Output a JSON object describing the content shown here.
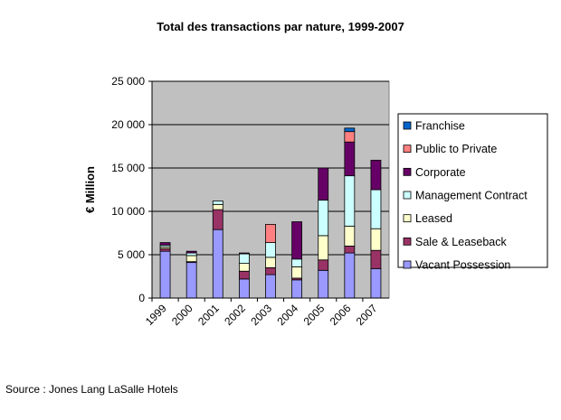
{
  "chart_data": {
    "type": "bar",
    "stacked": true,
    "title": "Total des transactions par nature, 1999-2007",
    "ylabel": "€ Million",
    "xlabel": "",
    "ylim": [
      0,
      25000
    ],
    "yticks": [
      0,
      5000,
      10000,
      15000,
      20000,
      25000
    ],
    "ytick_labels": [
      "0",
      "5 000",
      "10 000",
      "15 000",
      "20 000",
      "25 000"
    ],
    "categories": [
      "1999",
      "2000",
      "2001",
      "2002",
      "2003",
      "2004",
      "2005",
      "2006",
      "2007"
    ],
    "legend_position": "right",
    "grid": true,
    "plot_background": "#c0c0c0",
    "series": [
      {
        "name": "Vacant Possession",
        "color": "#9999ff",
        "values": [
          5400,
          4100,
          7900,
          2200,
          2700,
          2100,
          3200,
          5200,
          3400
        ]
      },
      {
        "name": "Sale & Leaseback",
        "color": "#993366",
        "values": [
          300,
          100,
          2300,
          900,
          800,
          200,
          1200,
          800,
          2100
        ]
      },
      {
        "name": "Leased",
        "color": "#ffffcc",
        "values": [
          200,
          700,
          600,
          900,
          1200,
          1300,
          2800,
          2300,
          2500
        ]
      },
      {
        "name": "Management Contract",
        "color": "#ccffff",
        "values": [
          200,
          300,
          400,
          1100,
          1700,
          900,
          4100,
          5800,
          4500
        ]
      },
      {
        "name": "Corporate",
        "color": "#660066",
        "values": [
          300,
          200,
          0,
          100,
          0,
          4300,
          3700,
          3900,
          3400
        ]
      },
      {
        "name": "Public to Private",
        "color": "#ff8080",
        "values": [
          0,
          0,
          0,
          0,
          2100,
          0,
          0,
          1200,
          0
        ]
      },
      {
        "name": "Franchise",
        "color": "#0066cc",
        "values": [
          0,
          0,
          0,
          0,
          0,
          0,
          0,
          400,
          0
        ]
      }
    ]
  },
  "source": "Source : Jones Lang LaSalle Hotels"
}
